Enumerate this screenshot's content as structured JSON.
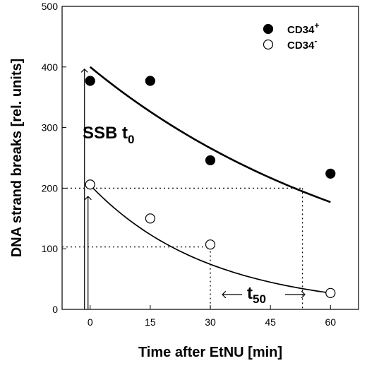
{
  "chart_data": {
    "type": "scatter",
    "xlabel": "Time after EtNU [min]",
    "ylabel": "DNA strand breaks [rel. units]",
    "xlim": [
      -7,
      67
    ],
    "ylim": [
      0,
      500
    ],
    "x_ticks": [
      0,
      15,
      30,
      45,
      60
    ],
    "y_ticks": [
      0,
      100,
      200,
      300,
      400,
      500
    ],
    "grid": false,
    "legend_position": "top-right",
    "series": [
      {
        "name": "CD34",
        "name_superscript": "+",
        "marker": "filled-circle",
        "color": "#000000",
        "x": [
          0,
          15,
          30,
          60
        ],
        "y": [
          377,
          377,
          246,
          224
        ],
        "fit": {
          "type": "exponential-decay",
          "x_range": [
            0,
            60
          ],
          "y_start": 400,
          "y_end": 177
        }
      },
      {
        "name": "CD34",
        "name_superscript": "-",
        "marker": "open-circle",
        "color": "#000000",
        "x": [
          0,
          15,
          30,
          60
        ],
        "y": [
          206,
          150,
          107,
          27
        ],
        "fit": {
          "type": "exponential-decay",
          "x_range": [
            0,
            60
          ],
          "y_start": 205,
          "y_end": 27
        }
      }
    ],
    "annotations": {
      "ssb_main": "SSB t",
      "ssb_sub": "0",
      "t50_main": "t",
      "t50_sub": "50",
      "reference_lines": [
        {
          "level_y": 200,
          "from_x": -7,
          "to_x": 53
        },
        {
          "level_y": 103,
          "from_x": -7,
          "to_x": 30
        }
      ]
    }
  }
}
